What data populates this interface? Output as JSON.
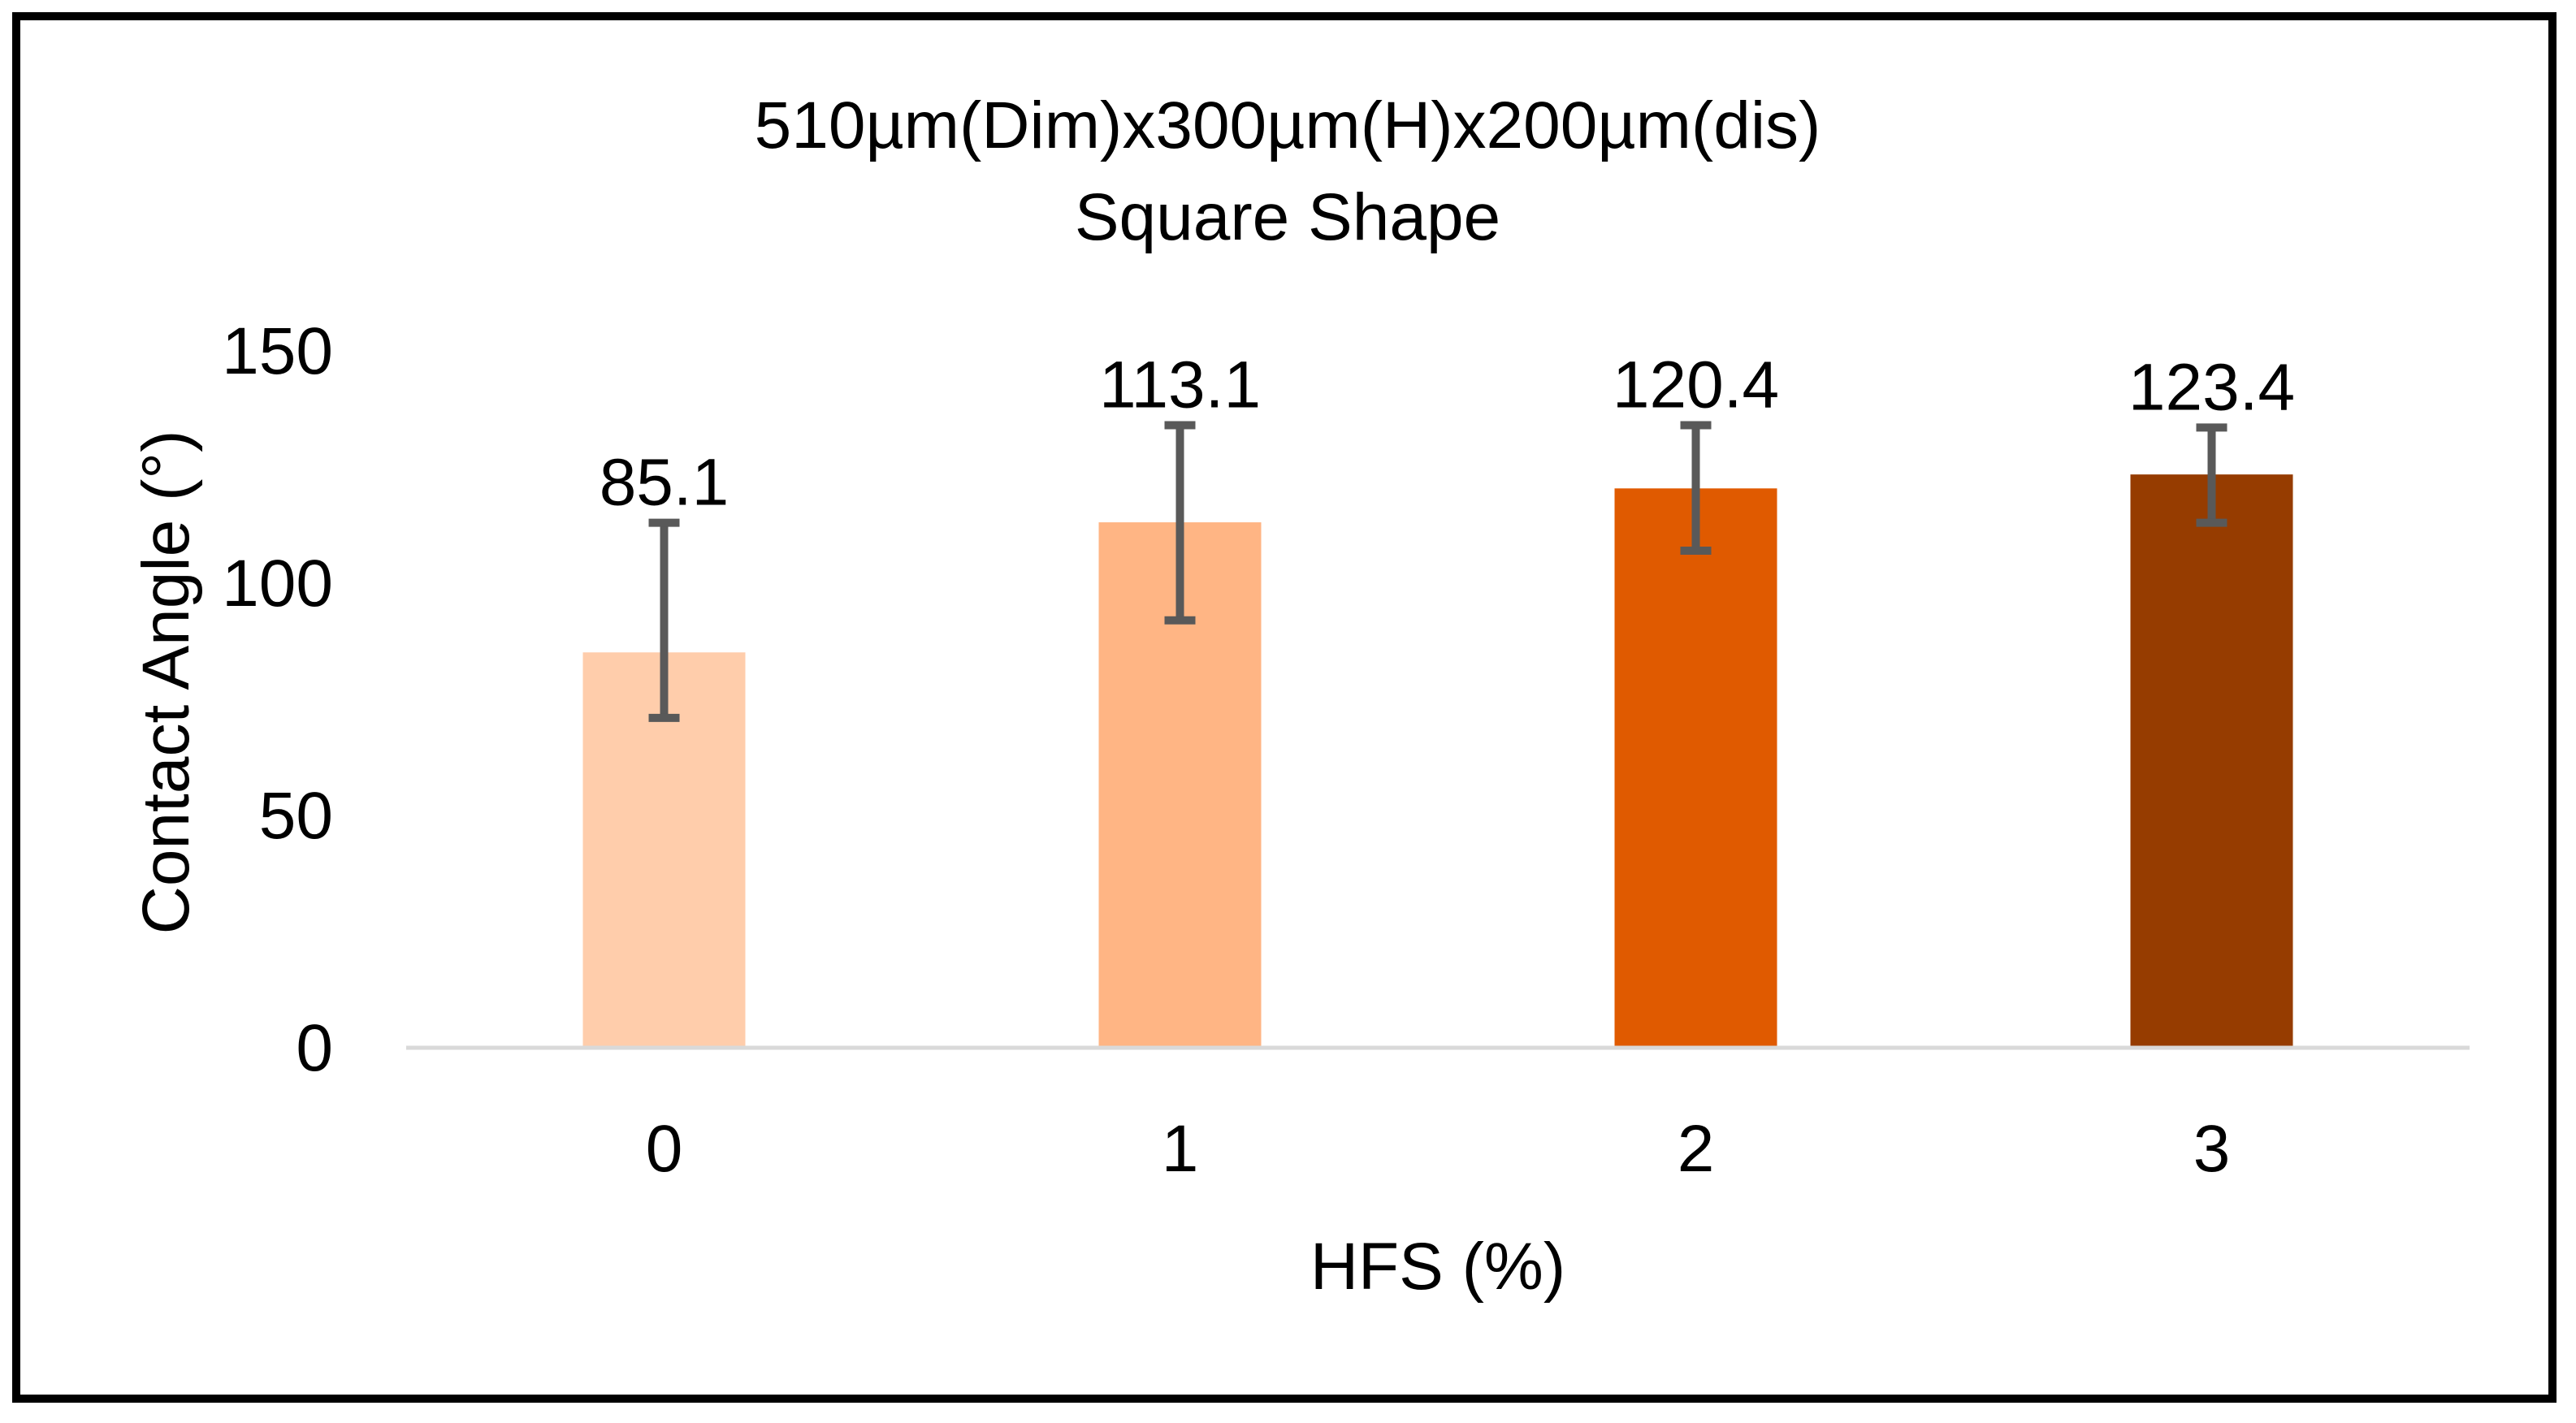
{
  "chart_data": {
    "type": "bar",
    "title": "510µm(Dim)x300µm(H)x200µm(dis)",
    "subtitle": "Square Shape",
    "xlabel": "HFS (%)",
    "ylabel": "Contact Angle (°)",
    "categories": [
      "0",
      "1",
      "2",
      "3"
    ],
    "values": [
      85.1,
      113.1,
      120.4,
      123.4
    ],
    "value_labels": [
      "85.1",
      "113.1",
      "120.4",
      "123.4"
    ],
    "error_bars": [
      {
        "low": 71,
        "high": 113
      },
      {
        "low": 92,
        "high": 134
      },
      {
        "low": 107,
        "high": 134
      },
      {
        "low": 113,
        "high": 133.5
      }
    ],
    "colors": [
      "#FFCDAB",
      "#FFB584",
      "#E05A00",
      "#963C00"
    ],
    "error_bar_color": "#595959",
    "axis_line_color": "#D9D9D9",
    "frame_color": "#000000",
    "ylim": [
      0,
      150
    ],
    "yticks": [
      0,
      50,
      100,
      150
    ],
    "ytick_labels": [
      "0",
      "50",
      "100",
      "150"
    ],
    "grid": false,
    "legend": "none"
  }
}
